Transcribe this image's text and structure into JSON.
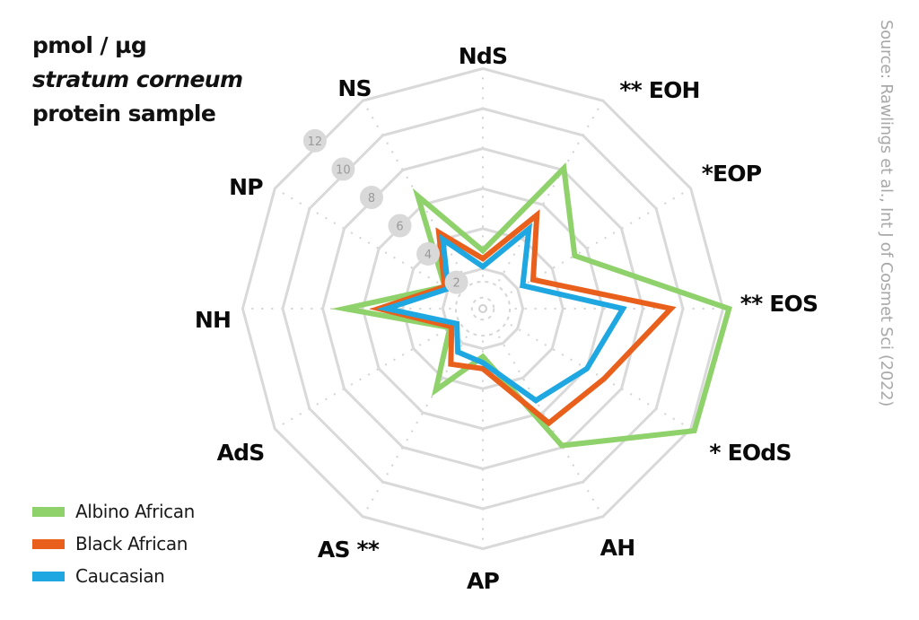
{
  "title": {
    "line1": "pmol / µg",
    "line2": "stratum corneum",
    "line3": "protein sample"
  },
  "source": "Source: Rawlings et al., Int J of Cosmet Sci (2022)",
  "legend": [
    {
      "label": "Albino African",
      "color": "#8fd16a"
    },
    {
      "label": "Black African",
      "color": "#e8601c"
    },
    {
      "label": "Caucasian",
      "color": "#1ea7e1"
    }
  ],
  "chart_data": {
    "type": "radar",
    "title": "pmol / µg stratum corneum protein sample",
    "axes": [
      "NdS",
      "** EOH",
      "*EOP",
      "** EOS",
      "* EOdS",
      "AH",
      "AP",
      "AS **",
      "AdS",
      "NH",
      "NP",
      "NS"
    ],
    "rlim": [
      0,
      12
    ],
    "ring_ticks": [
      2,
      4,
      6,
      8,
      10,
      12
    ],
    "grid": true,
    "legend_position": "bottom-left",
    "series": [
      {
        "name": "Albino African",
        "color": "#8fd16a",
        "values": [
          2.9,
          8.1,
          5.3,
          12.3,
          12.2,
          7.9,
          2.4,
          4.7,
          1.9,
          6.9,
          2.2,
          6.5
        ]
      },
      {
        "name": "Black African",
        "color": "#e8601c",
        "values": [
          2.5,
          5.4,
          2.9,
          9.4,
          7.0,
          6.6,
          3.0,
          3.2,
          1.8,
          5.2,
          2.2,
          4.4
        ]
      },
      {
        "name": "Caucasian",
        "color": "#1ea7e1",
        "values": [
          2.1,
          4.6,
          2.3,
          7.0,
          6.0,
          5.3,
          2.7,
          2.5,
          1.5,
          4.8,
          2.0,
          4.0
        ]
      }
    ]
  }
}
